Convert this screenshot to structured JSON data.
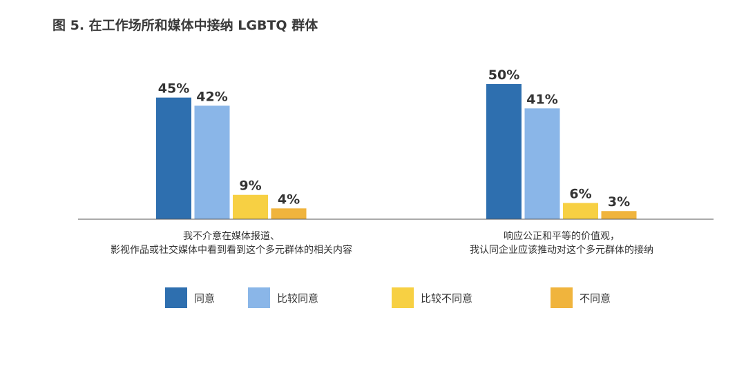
{
  "title": "图 5. 在工作场所和媒体中接纳 LGBTQ 群体",
  "chart_data": {
    "type": "bar",
    "unit": "%",
    "ylim": [
      0,
      50
    ],
    "grid": false,
    "legend_position": "bottom",
    "groups": [
      {
        "label_lines": [
          "我不介意在媒体报道、",
          "影视作品或社交媒体中看到看到这个多元群体的相关内容"
        ]
      },
      {
        "label_lines": [
          "响应公正和平等的价值观，",
          "我认同企业应该推动对这个多元群体的接纳"
        ]
      }
    ],
    "series": [
      {
        "name": "同意",
        "color": "#2e6faf",
        "values": [
          45,
          50
        ],
        "labels": [
          "45%",
          "50%"
        ]
      },
      {
        "name": "比较同意",
        "color": "#8ab6e8",
        "values": [
          42,
          41
        ],
        "labels": [
          "42%",
          "41%"
        ]
      },
      {
        "name": "比较不同意",
        "color": "#f7d043",
        "values": [
          9,
          6
        ],
        "labels": [
          "9%",
          "6%"
        ]
      },
      {
        "name": "不同意",
        "color": "#f0b43d",
        "values": [
          4,
          3
        ],
        "labels": [
          "4%",
          "3%"
        ]
      }
    ]
  }
}
